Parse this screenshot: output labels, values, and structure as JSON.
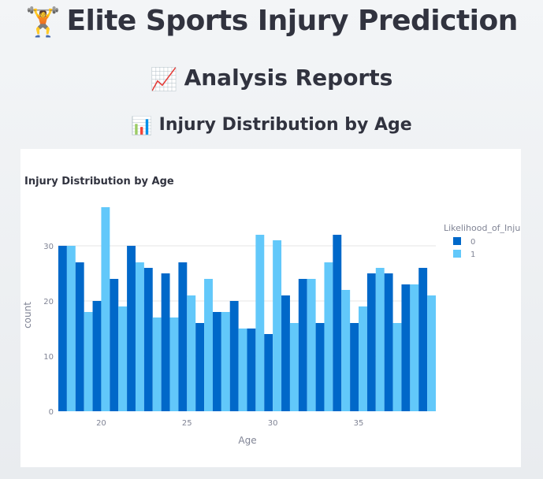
{
  "header": {
    "title_icon": "🏋",
    "title": "Elite Sports Injury Prediction",
    "subtitle_icon": "📈",
    "subtitle": "Analysis Reports",
    "section_icon": "📊",
    "section": "Injury Distribution by Age"
  },
  "colors": {
    "series0": "#0068c9",
    "series1": "#62c8fa",
    "grid": "#e6e6e6",
    "axis_text": "#808495",
    "title_text": "#31333f"
  },
  "chart_data": {
    "type": "bar",
    "title": "Injury Distribution by Age",
    "xlabel": "Age",
    "ylabel": "count",
    "x": [
      18,
      19,
      20,
      21,
      22,
      23,
      24,
      25,
      26,
      27,
      28,
      29,
      30,
      31,
      32,
      33,
      34,
      35,
      36,
      37,
      38,
      39
    ],
    "xticks": [
      20,
      25,
      30,
      35
    ],
    "yticks": [
      0,
      10,
      20,
      30
    ],
    "ylim": [
      0,
      39
    ],
    "xlim": [
      17.5,
      39.5
    ],
    "legend_title": "Likelihood_of_Injury",
    "legend_position": "top-right",
    "grid": true,
    "series": [
      {
        "name": "0",
        "values": [
          30,
          27,
          20,
          24,
          30,
          26,
          25,
          27,
          16,
          18,
          20,
          15,
          14,
          21,
          24,
          16,
          32,
          16,
          25,
          25,
          23,
          26
        ]
      },
      {
        "name": "1",
        "values": [
          30,
          18,
          37,
          19,
          27,
          17,
          17,
          21,
          24,
          18,
          15,
          32,
          31,
          16,
          24,
          27,
          22,
          19,
          26,
          16,
          23,
          21
        ]
      }
    ]
  }
}
